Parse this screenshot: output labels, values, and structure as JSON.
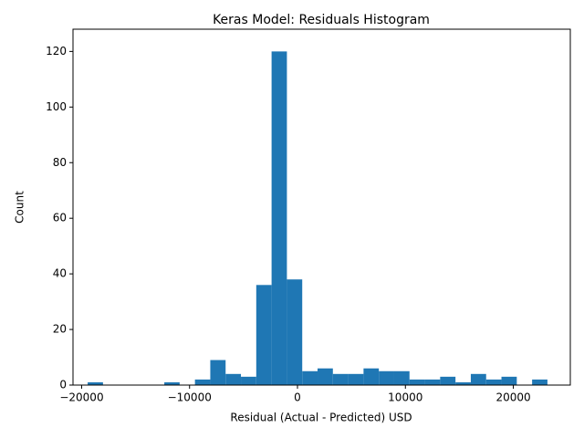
{
  "chart_data": {
    "type": "histogram",
    "title": "Keras Model: Residuals Histogram",
    "x_label": "Residual (Actual - Predicted) USD",
    "y_label": "Count",
    "color": "#1f77b4",
    "bins": [
      -19440,
      -18020,
      -16600,
      -15180,
      -13760,
      -12340,
      -10920,
      -9500,
      -8080,
      -6660,
      -5240,
      -3820,
      -2400,
      -980,
      440,
      1860,
      3280,
      4700,
      6120,
      7540,
      8960,
      10380,
      11800,
      13220,
      14640,
      16060,
      17480,
      18900,
      20320,
      21740,
      23160
    ],
    "values": [
      1,
      0,
      0,
      0,
      0,
      1,
      0,
      2,
      9,
      4,
      3,
      36,
      120,
      38,
      5,
      6,
      4,
      4,
      6,
      5,
      5,
      2,
      2,
      3,
      1,
      4,
      2,
      3,
      0,
      2
    ],
    "xlim": [
      -20800,
      25280
    ],
    "ylim": [
      0,
      128
    ],
    "xticks": [
      {
        "value": -20000,
        "label": "−20000"
      },
      {
        "value": -10000,
        "label": "−10000"
      },
      0,
      10000,
      20000
    ],
    "yticks": [
      0,
      20,
      40,
      60,
      80,
      100,
      120
    ]
  }
}
